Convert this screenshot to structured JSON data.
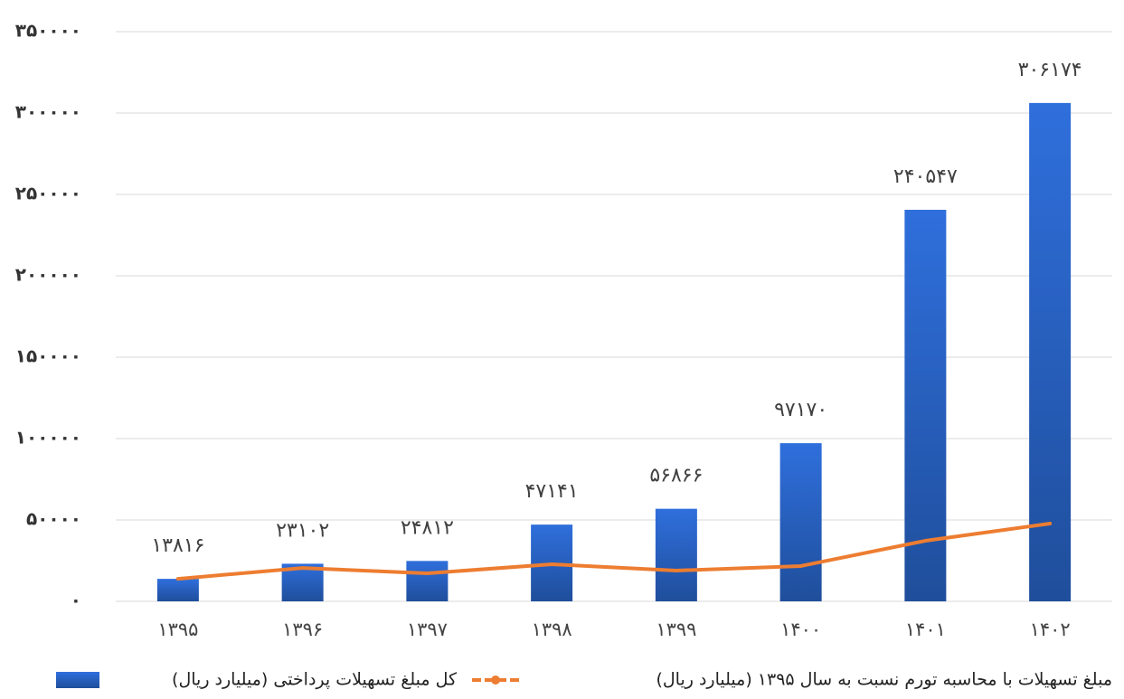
{
  "chart_data": {
    "type": "bar",
    "categories": [
      "۱۳۹۵",
      "۱۳۹۶",
      "۱۳۹۷",
      "۱۳۹۸",
      "۱۳۹۹",
      "۱۴۰۰",
      "۱۴۰۱",
      "۱۴۰۲"
    ],
    "series": [
      {
        "name": "کل مبلغ تسهیلات پرداختی (میلیارد ریال)",
        "type": "bar",
        "color": "#2a62c9",
        "values": [
          13816,
          23102,
          24812,
          47141,
          56866,
          97170,
          240547,
          306174
        ],
        "value_labels": [
          "۱۳۸۱۶",
          "۲۳۱۰۲",
          "۲۴۸۱۲",
          "۴۷۱۴۱",
          "۵۶۸۶۶",
          "۹۷۱۷۰",
          "۲۴۰۵۴۷",
          "۳۰۶۱۷۴"
        ]
      },
      {
        "name": "مبلغ تسهیلات با محاسبه تورم نسبت به سال ۱۳۹۵ (میلیارد ریال)",
        "type": "line",
        "color": "#ed7d31",
        "values": [
          13816,
          20500,
          17200,
          22800,
          18900,
          21700,
          37200,
          47800
        ]
      }
    ],
    "ylim": [
      0,
      350000
    ],
    "yticks": [
      {
        "value": 0,
        "label": "۰"
      },
      {
        "value": 50000,
        "label": "۵۰۰۰۰"
      },
      {
        "value": 100000,
        "label": "۱۰۰۰۰۰"
      },
      {
        "value": 150000,
        "label": "۱۵۰۰۰۰"
      },
      {
        "value": 200000,
        "label": "۲۰۰۰۰۰"
      },
      {
        "value": 250000,
        "label": "۲۵۰۰۰۰"
      },
      {
        "value": 300000,
        "label": "۳۰۰۰۰۰"
      },
      {
        "value": 350000,
        "label": "۳۵۰۰۰۰"
      }
    ],
    "grid": true,
    "legend": "bottom"
  }
}
